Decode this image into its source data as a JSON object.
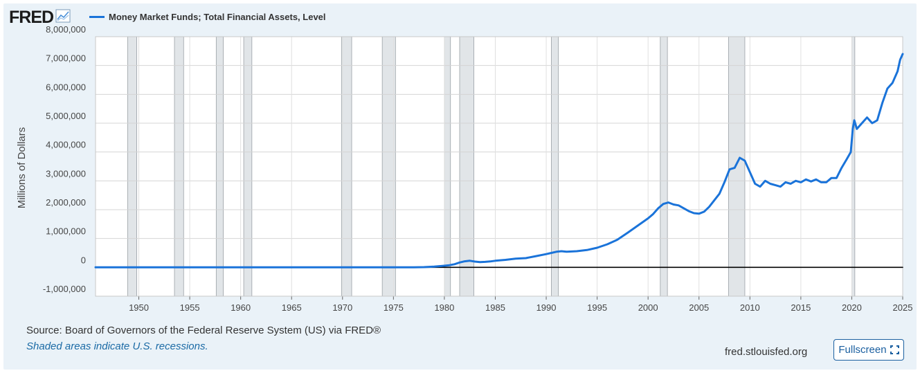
{
  "logo": {
    "text": "FRED"
  },
  "chart_data": {
    "type": "line",
    "title": "",
    "series": [
      {
        "name": "Money Market Funds; Total Financial Assets, Level",
        "color": "#1a73d9",
        "points": [
          [
            1945.75,
            0
          ],
          [
            1946.5,
            0
          ],
          [
            1947.5,
            0
          ],
          [
            1952.0,
            0
          ],
          [
            1955,
            0
          ],
          [
            1960,
            0
          ],
          [
            1965,
            0
          ],
          [
            1970,
            0
          ],
          [
            1974,
            0
          ],
          [
            1975,
            1000
          ],
          [
            1976,
            3000
          ],
          [
            1977,
            4000
          ],
          [
            1978,
            8000
          ],
          [
            1979,
            25000
          ],
          [
            1980,
            55000
          ],
          [
            1980.5,
            75000
          ],
          [
            1981,
            110000
          ],
          [
            1981.5,
            170000
          ],
          [
            1982,
            210000
          ],
          [
            1982.5,
            230000
          ],
          [
            1983,
            200000
          ],
          [
            1983.5,
            180000
          ],
          [
            1984,
            190000
          ],
          [
            1984.5,
            205000
          ],
          [
            1985,
            230000
          ],
          [
            1986,
            260000
          ],
          [
            1987,
            300000
          ],
          [
            1988,
            320000
          ],
          [
            1989,
            390000
          ],
          [
            1990,
            460000
          ],
          [
            1990.5,
            500000
          ],
          [
            1991,
            540000
          ],
          [
            1991.5,
            560000
          ],
          [
            1992,
            540000
          ],
          [
            1993,
            560000
          ],
          [
            1994,
            600000
          ],
          [
            1995,
            680000
          ],
          [
            1996,
            800000
          ],
          [
            1997,
            960000
          ],
          [
            1998,
            1200000
          ],
          [
            1999,
            1450000
          ],
          [
            2000,
            1700000
          ],
          [
            2000.5,
            1850000
          ],
          [
            2001,
            2050000
          ],
          [
            2001.5,
            2200000
          ],
          [
            2002,
            2250000
          ],
          [
            2002.5,
            2180000
          ],
          [
            2003,
            2150000
          ],
          [
            2004,
            1950000
          ],
          [
            2004.5,
            1880000
          ],
          [
            2005,
            1860000
          ],
          [
            2005.5,
            1930000
          ],
          [
            2006,
            2100000
          ],
          [
            2007,
            2550000
          ],
          [
            2007.5,
            2950000
          ],
          [
            2008,
            3400000
          ],
          [
            2008.5,
            3450000
          ],
          [
            2009,
            3800000
          ],
          [
            2009.5,
            3700000
          ],
          [
            2010,
            3300000
          ],
          [
            2010.5,
            2900000
          ],
          [
            2011,
            2800000
          ],
          [
            2011.5,
            3000000
          ],
          [
            2012,
            2900000
          ],
          [
            2012.5,
            2850000
          ],
          [
            2013,
            2800000
          ],
          [
            2013.5,
            2950000
          ],
          [
            2014,
            2900000
          ],
          [
            2014.5,
            3000000
          ],
          [
            2015,
            2950000
          ],
          [
            2015.5,
            3050000
          ],
          [
            2016,
            2980000
          ],
          [
            2016.5,
            3050000
          ],
          [
            2017,
            2950000
          ],
          [
            2017.5,
            2950000
          ],
          [
            2018,
            3100000
          ],
          [
            2018.5,
            3100000
          ],
          [
            2019,
            3450000
          ],
          [
            2019.5,
            3750000
          ],
          [
            2019.9,
            4000000
          ],
          [
            2020.1,
            4800000
          ],
          [
            2020.25,
            5100000
          ],
          [
            2020.5,
            4800000
          ],
          [
            2021,
            5000000
          ],
          [
            2021.5,
            5200000
          ],
          [
            2022,
            5000000
          ],
          [
            2022.5,
            5100000
          ],
          [
            2023,
            5700000
          ],
          [
            2023.5,
            6200000
          ],
          [
            2024,
            6400000
          ],
          [
            2024.5,
            6800000
          ],
          [
            2024.75,
            7200000
          ],
          [
            2025,
            7400000
          ]
        ]
      },
      {
        "name": "",
        "color": "#000000",
        "points": [
          [
            1945.75,
            0
          ],
          [
            2025,
            0
          ]
        ]
      }
    ],
    "recessions": [
      [
        1948.9,
        1949.8
      ],
      [
        1953.5,
        1954.4
      ],
      [
        1957.6,
        1958.3
      ],
      [
        1960.3,
        1961.1
      ],
      [
        1969.9,
        1970.9
      ],
      [
        1973.9,
        1975.2
      ],
      [
        1980.0,
        1980.6
      ],
      [
        1981.5,
        1982.9
      ],
      [
        1990.5,
        1991.2
      ],
      [
        2001.2,
        2001.9
      ],
      [
        2007.9,
        2009.5
      ],
      [
        2020.0,
        2020.3
      ]
    ],
    "xlim": [
      1945.75,
      2025
    ],
    "ylim": [
      -1000000,
      8000000
    ],
    "x_ticks": [
      "1950",
      "1955",
      "1960",
      "1965",
      "1970",
      "1975",
      "1980",
      "1985",
      "1990",
      "1995",
      "2000",
      "2005",
      "2010",
      "2015",
      "2020",
      "2025"
    ],
    "y_ticks": [
      "8,000,000",
      "7,000,000",
      "6,000,000",
      "5,000,000",
      "4,000,000",
      "3,000,000",
      "2,000,000",
      "1,000,000",
      "0",
      "-1,000,000"
    ],
    "ylabel": "Millions of Dollars",
    "xlabel": "",
    "grid": true,
    "legend": "top-left"
  },
  "footer": {
    "source": "Source: Board of Governors of the Federal Reserve System (US) via FRED®",
    "recession_note": "Shaded areas indicate U.S. recessions.",
    "site": "fred.stlouisfed.org",
    "fullscreen_label": "Fullscreen"
  }
}
